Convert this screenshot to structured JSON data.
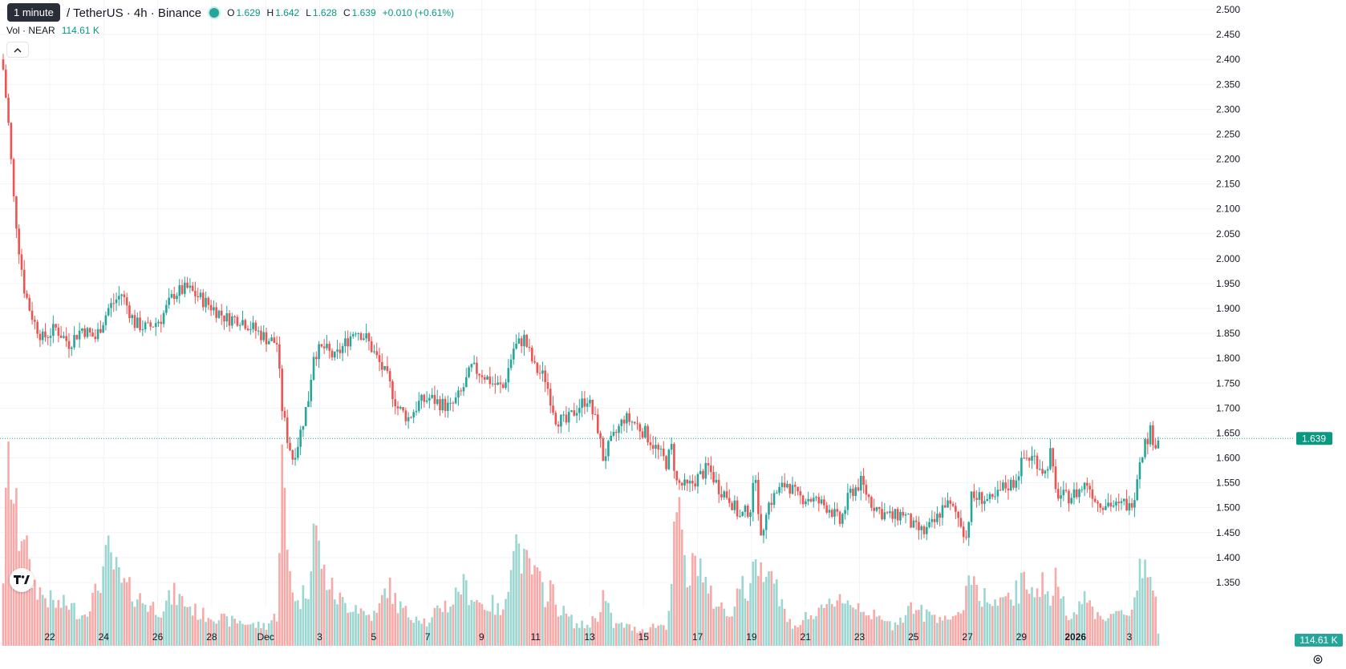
{
  "legend": {
    "tooltip": "1 minute",
    "symbol": "/ TetherUS · 4h · Binance",
    "o_label": "O",
    "o_value": "1.629",
    "h_label": "H",
    "h_value": "1.642",
    "l_label": "L",
    "l_value": "1.628",
    "c_label": "C",
    "c_value": "1.639",
    "change": "+0.010 (+0.61%)"
  },
  "volume_legend": {
    "label": "Vol · NEAR",
    "value": "114.61 K"
  },
  "icons": {
    "collapse": "chevron-up-icon",
    "logo": "tradingview-logo",
    "settings": "gear-icon"
  },
  "colors": {
    "up": "#26a69a",
    "down": "#ef5350",
    "vol_up": "#9bd6d0",
    "vol_down": "#f7a9a7",
    "price_line": "#26a69a"
  },
  "chart_data": {
    "type": "candlestick",
    "interval": "4h",
    "ylim": [
      1.3,
      2.5
    ],
    "y_ticks": [
      "2.500",
      "2.450",
      "2.400",
      "2.350",
      "2.300",
      "2.250",
      "2.200",
      "2.150",
      "2.100",
      "2.050",
      "2.000",
      "1.950",
      "1.900",
      "1.850",
      "1.800",
      "1.750",
      "1.700",
      "1.650",
      "1.600",
      "1.550",
      "1.500",
      "1.450",
      "1.400",
      "1.350"
    ],
    "x_ticks": [
      {
        "label": "22",
        "bold": false
      },
      {
        "label": "24",
        "bold": false
      },
      {
        "label": "26",
        "bold": false
      },
      {
        "label": "28",
        "bold": false
      },
      {
        "label": "Dec",
        "bold": false
      },
      {
        "label": "3",
        "bold": false
      },
      {
        "label": "5",
        "bold": false
      },
      {
        "label": "7",
        "bold": false
      },
      {
        "label": "9",
        "bold": false
      },
      {
        "label": "11",
        "bold": false
      },
      {
        "label": "13",
        "bold": false
      },
      {
        "label": "15",
        "bold": false
      },
      {
        "label": "17",
        "bold": false
      },
      {
        "label": "19",
        "bold": false
      },
      {
        "label": "21",
        "bold": false
      },
      {
        "label": "23",
        "bold": false
      },
      {
        "label": "25",
        "bold": false
      },
      {
        "label": "27",
        "bold": false
      },
      {
        "label": "29",
        "bold": false
      },
      {
        "label": "2026",
        "bold": true
      },
      {
        "label": "3",
        "bold": false
      }
    ],
    "last_price": 1.639,
    "last_price_label": "1.639",
    "last_volume_label": "114.61 K",
    "close_anchors": [
      [
        0,
        2.38
      ],
      [
        2,
        2.27
      ],
      [
        4,
        2.12
      ],
      [
        6,
        2.02
      ],
      [
        8,
        1.94
      ],
      [
        10,
        1.9
      ],
      [
        12,
        1.87
      ],
      [
        15,
        1.84
      ],
      [
        20,
        1.86
      ],
      [
        25,
        1.83
      ],
      [
        30,
        1.86
      ],
      [
        35,
        1.84
      ],
      [
        40,
        1.9
      ],
      [
        45,
        1.93
      ],
      [
        50,
        1.87
      ],
      [
        55,
        1.86
      ],
      [
        60,
        1.88
      ],
      [
        65,
        1.93
      ],
      [
        70,
        1.94
      ],
      [
        75,
        1.92
      ],
      [
        80,
        1.9
      ],
      [
        85,
        1.88
      ],
      [
        90,
        1.88
      ],
      [
        95,
        1.86
      ],
      [
        100,
        1.84
      ],
      [
        104,
        1.83
      ],
      [
        106,
        1.7
      ],
      [
        108,
        1.64
      ],
      [
        110,
        1.6
      ],
      [
        112,
        1.63
      ],
      [
        116,
        1.72
      ],
      [
        118,
        1.81
      ],
      [
        122,
        1.82
      ],
      [
        126,
        1.8
      ],
      [
        130,
        1.83
      ],
      [
        134,
        1.86
      ],
      [
        138,
        1.84
      ],
      [
        142,
        1.8
      ],
      [
        146,
        1.76
      ],
      [
        150,
        1.7
      ],
      [
        154,
        1.68
      ],
      [
        158,
        1.71
      ],
      [
        162,
        1.72
      ],
      [
        166,
        1.71
      ],
      [
        170,
        1.7
      ],
      [
        174,
        1.73
      ],
      [
        178,
        1.78
      ],
      [
        182,
        1.77
      ],
      [
        186,
        1.75
      ],
      [
        190,
        1.74
      ],
      [
        194,
        1.82
      ],
      [
        198,
        1.84
      ],
      [
        202,
        1.78
      ],
      [
        206,
        1.76
      ],
      [
        208,
        1.72
      ],
      [
        210,
        1.68
      ],
      [
        214,
        1.67
      ],
      [
        218,
        1.7
      ],
      [
        222,
        1.72
      ],
      [
        226,
        1.66
      ],
      [
        228,
        1.6
      ],
      [
        232,
        1.64
      ],
      [
        236,
        1.68
      ],
      [
        240,
        1.67
      ],
      [
        244,
        1.65
      ],
      [
        248,
        1.62
      ],
      [
        252,
        1.59
      ],
      [
        254,
        1.62
      ],
      [
        256,
        1.55
      ],
      [
        260,
        1.54
      ],
      [
        264,
        1.56
      ],
      [
        268,
        1.58
      ],
      [
        272,
        1.54
      ],
      [
        276,
        1.52
      ],
      [
        280,
        1.48
      ],
      [
        284,
        1.5
      ],
      [
        286,
        1.57
      ],
      [
        288,
        1.43
      ],
      [
        290,
        1.5
      ],
      [
        294,
        1.53
      ],
      [
        298,
        1.55
      ],
      [
        302,
        1.52
      ],
      [
        306,
        1.52
      ],
      [
        310,
        1.51
      ],
      [
        314,
        1.5
      ],
      [
        318,
        1.47
      ],
      [
        322,
        1.53
      ],
      [
        326,
        1.55
      ],
      [
        330,
        1.51
      ],
      [
        334,
        1.49
      ],
      [
        338,
        1.48
      ],
      [
        342,
        1.49
      ],
      [
        346,
        1.46
      ],
      [
        350,
        1.45
      ],
      [
        354,
        1.47
      ],
      [
        358,
        1.51
      ],
      [
        362,
        1.49
      ],
      [
        364,
        1.47
      ],
      [
        366,
        1.44
      ],
      [
        368,
        1.52
      ],
      [
        372,
        1.52
      ],
      [
        376,
        1.51
      ],
      [
        380,
        1.54
      ],
      [
        384,
        1.55
      ],
      [
        388,
        1.6
      ],
      [
        392,
        1.6
      ],
      [
        396,
        1.57
      ],
      [
        398,
        1.61
      ],
      [
        400,
        1.53
      ],
      [
        404,
        1.52
      ],
      [
        408,
        1.53
      ],
      [
        412,
        1.55
      ],
      [
        416,
        1.51
      ],
      [
        420,
        1.51
      ],
      [
        424,
        1.5
      ],
      [
        426,
        1.51
      ],
      [
        428,
        1.5
      ],
      [
        430,
        1.53
      ],
      [
        432,
        1.6
      ],
      [
        434,
        1.63
      ],
      [
        436,
        1.652
      ],
      [
        438,
        1.629
      ],
      [
        439,
        1.639
      ]
    ],
    "volume_anchors": [
      [
        0,
        0.35
      ],
      [
        2,
        0.95
      ],
      [
        4,
        0.7
      ],
      [
        6,
        0.55
      ],
      [
        8,
        0.6
      ],
      [
        10,
        0.35
      ],
      [
        12,
        0.3
      ],
      [
        15,
        0.25
      ],
      [
        20,
        0.2
      ],
      [
        25,
        0.2
      ],
      [
        30,
        0.15
      ],
      [
        35,
        0.25
      ],
      [
        40,
        0.45
      ],
      [
        45,
        0.3
      ],
      [
        50,
        0.25
      ],
      [
        55,
        0.2
      ],
      [
        60,
        0.18
      ],
      [
        65,
        0.25
      ],
      [
        70,
        0.2
      ],
      [
        75,
        0.15
      ],
      [
        80,
        0.15
      ],
      [
        85,
        0.12
      ],
      [
        90,
        0.12
      ],
      [
        95,
        0.1
      ],
      [
        100,
        0.1
      ],
      [
        104,
        0.15
      ],
      [
        106,
        0.9
      ],
      [
        108,
        0.45
      ],
      [
        110,
        0.3
      ],
      [
        112,
        0.2
      ],
      [
        116,
        0.3
      ],
      [
        118,
        0.6
      ],
      [
        122,
        0.35
      ],
      [
        126,
        0.25
      ],
      [
        130,
        0.2
      ],
      [
        134,
        0.2
      ],
      [
        138,
        0.15
      ],
      [
        142,
        0.15
      ],
      [
        146,
        0.3
      ],
      [
        150,
        0.2
      ],
      [
        154,
        0.15
      ],
      [
        158,
        0.15
      ],
      [
        162,
        0.1
      ],
      [
        166,
        0.2
      ],
      [
        170,
        0.2
      ],
      [
        174,
        0.3
      ],
      [
        178,
        0.25
      ],
      [
        182,
        0.2
      ],
      [
        186,
        0.2
      ],
      [
        190,
        0.15
      ],
      [
        194,
        0.55
      ],
      [
        198,
        0.4
      ],
      [
        202,
        0.35
      ],
      [
        206,
        0.25
      ],
      [
        208,
        0.3
      ],
      [
        210,
        0.2
      ],
      [
        214,
        0.15
      ],
      [
        218,
        0.1
      ],
      [
        222,
        0.1
      ],
      [
        226,
        0.15
      ],
      [
        228,
        0.25
      ],
      [
        232,
        0.1
      ],
      [
        236,
        0.1
      ],
      [
        240,
        0.08
      ],
      [
        244,
        0.08
      ],
      [
        248,
        0.1
      ],
      [
        252,
        0.1
      ],
      [
        254,
        0.3
      ],
      [
        256,
        0.7
      ],
      [
        260,
        0.3
      ],
      [
        264,
        0.45
      ],
      [
        268,
        0.25
      ],
      [
        272,
        0.2
      ],
      [
        276,
        0.15
      ],
      [
        280,
        0.3
      ],
      [
        284,
        0.25
      ],
      [
        286,
        0.5
      ],
      [
        288,
        0.35
      ],
      [
        290,
        0.45
      ],
      [
        294,
        0.3
      ],
      [
        298,
        0.12
      ],
      [
        302,
        0.1
      ],
      [
        306,
        0.15
      ],
      [
        310,
        0.15
      ],
      [
        314,
        0.2
      ],
      [
        318,
        0.25
      ],
      [
        322,
        0.2
      ],
      [
        326,
        0.2
      ],
      [
        330,
        0.15
      ],
      [
        334,
        0.12
      ],
      [
        338,
        0.1
      ],
      [
        342,
        0.15
      ],
      [
        346,
        0.2
      ],
      [
        350,
        0.15
      ],
      [
        354,
        0.15
      ],
      [
        358,
        0.15
      ],
      [
        362,
        0.12
      ],
      [
        364,
        0.15
      ],
      [
        366,
        0.3
      ],
      [
        368,
        0.35
      ],
      [
        372,
        0.25
      ],
      [
        376,
        0.2
      ],
      [
        380,
        0.2
      ],
      [
        384,
        0.25
      ],
      [
        388,
        0.3
      ],
      [
        392,
        0.3
      ],
      [
        396,
        0.3
      ],
      [
        398,
        0.2
      ],
      [
        400,
        0.35
      ],
      [
        404,
        0.15
      ],
      [
        408,
        0.2
      ],
      [
        412,
        0.22
      ],
      [
        416,
        0.15
      ],
      [
        420,
        0.15
      ],
      [
        424,
        0.15
      ],
      [
        426,
        0.15
      ],
      [
        428,
        0.15
      ],
      [
        430,
        0.25
      ],
      [
        432,
        0.4
      ],
      [
        434,
        0.4
      ],
      [
        436,
        0.35
      ],
      [
        438,
        0.2
      ],
      [
        439,
        0.05
      ]
    ]
  }
}
